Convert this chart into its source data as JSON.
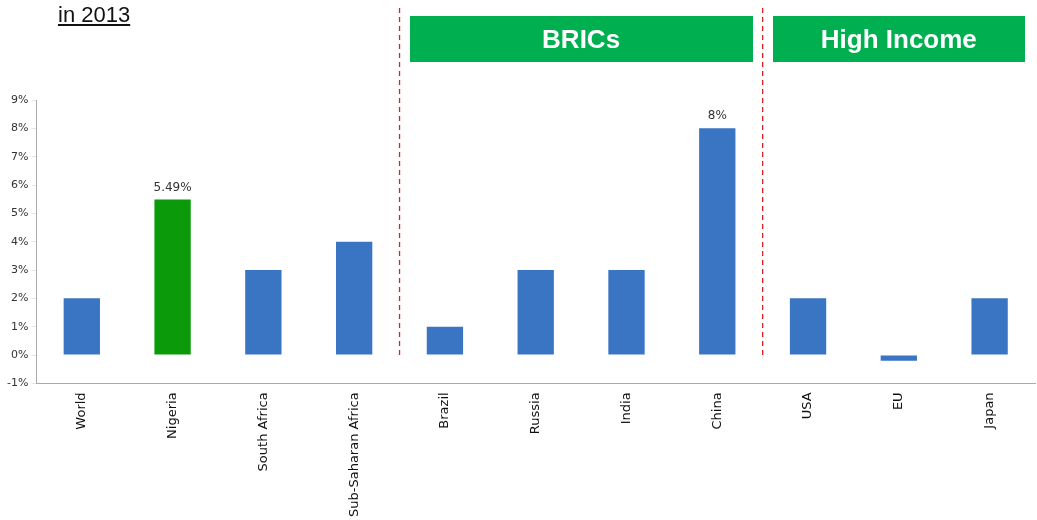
{
  "chart_data": {
    "type": "bar",
    "title": "in 2013",
    "categories": [
      "World",
      "Nigeria",
      "South Africa",
      "Sub-Saharan Africa",
      "Brazil",
      "Russia",
      "India",
      "China",
      "USA",
      "EU",
      "Japan"
    ],
    "values": [
      2,
      5.49,
      3,
      4,
      1,
      3,
      3,
      8,
      2,
      -0.2,
      2
    ],
    "colors": [
      "#3a75c4",
      "#0a9a0a",
      "#3a75c4",
      "#3a75c4",
      "#3a75c4",
      "#3a75c4",
      "#3a75c4",
      "#3a75c4",
      "#3a75c4",
      "#3a75c4",
      "#3a75c4"
    ],
    "value_labels": [
      null,
      "5.49%",
      null,
      null,
      null,
      null,
      null,
      "8%",
      null,
      null,
      null
    ],
    "ylim": [
      -1,
      9
    ],
    "yticks": [
      {
        "value": -1,
        "label": "-1%"
      },
      {
        "value": 0,
        "label": "0%"
      },
      {
        "value": 1,
        "label": "1%"
      },
      {
        "value": 2,
        "label": "2%"
      },
      {
        "value": 3,
        "label": "3%"
      },
      {
        "value": 4,
        "label": "4%"
      },
      {
        "value": 5,
        "label": "5%"
      },
      {
        "value": 6,
        "label": "6%"
      },
      {
        "value": 7,
        "label": "7%"
      },
      {
        "value": 8,
        "label": "8%"
      },
      {
        "value": 9,
        "label": "9%"
      }
    ],
    "annotations": [
      "BRICs",
      "High Income"
    ],
    "grid": false,
    "legend": false
  }
}
